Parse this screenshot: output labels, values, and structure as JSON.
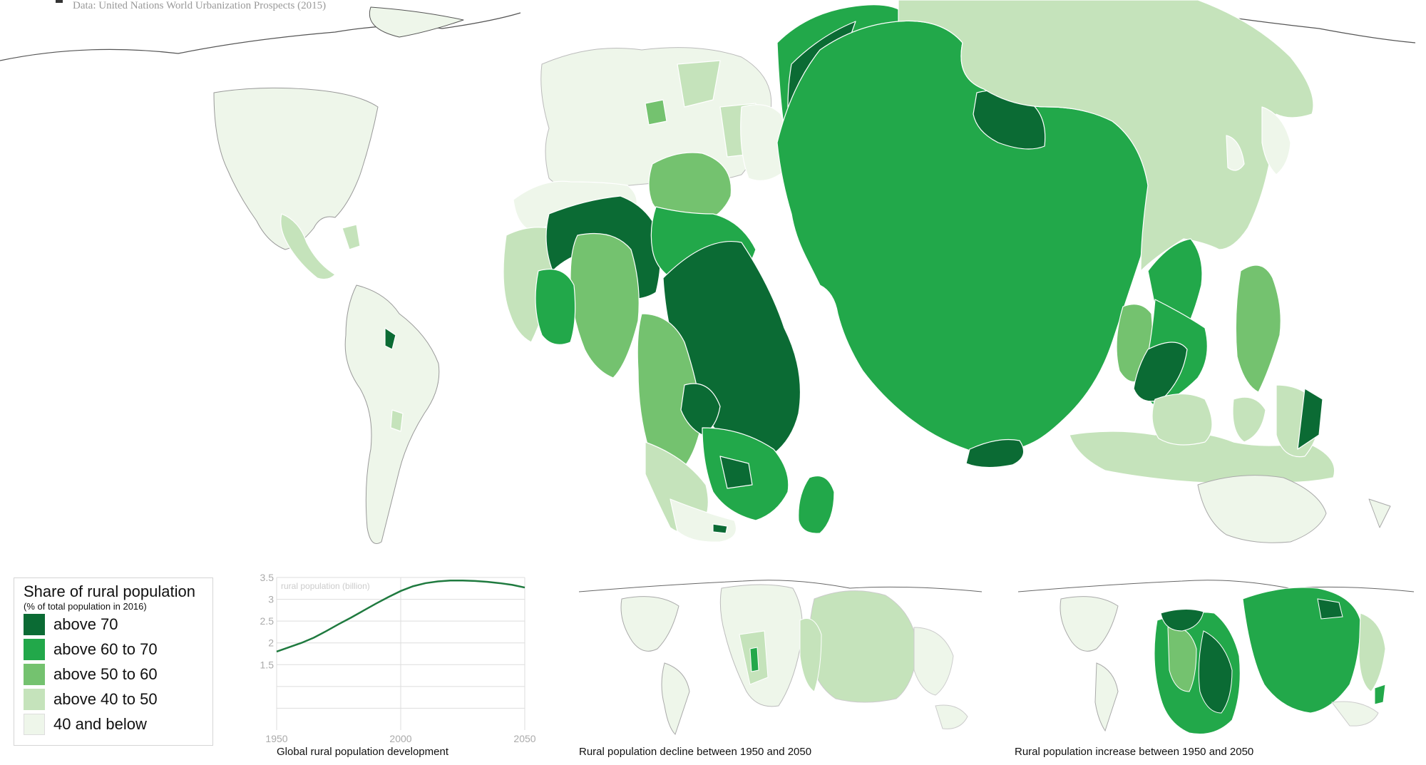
{
  "source": "Data: United Nations World Urbanization Prospects (2015)",
  "colors": {
    "above_70": "#0b6b34",
    "above_60_to_70": "#22a84a",
    "above_50_to_60": "#74c26f",
    "above_40_to_50": "#c5e3bb",
    "below_40": "#eef6ea"
  },
  "legend": {
    "title": "Share of rural population",
    "subtitle": "(% of total population in 2016)",
    "items": [
      {
        "label": "above 70",
        "color": "#0b6b34"
      },
      {
        "label": "above 60 to 70",
        "color": "#22a84a"
      },
      {
        "label": "above 50 to 60",
        "color": "#74c26f"
      },
      {
        "label": "above 40 to 50",
        "color": "#c5e3bb"
      },
      {
        "label": "40 and below",
        "color": "#eef6ea"
      }
    ]
  },
  "captions": {
    "chart": "Global rural population development",
    "decline": "Rural population decline between 1950 and 2050",
    "increase": "Rural population increase between 1950 and 2050"
  },
  "chart_data": {
    "type": "line",
    "title": "Global rural population development",
    "ylabel": "rural population (billion)",
    "xlim": [
      1950,
      2050
    ],
    "ylim": [
      0,
      3.5
    ],
    "yticks": [
      1.5,
      2,
      2.5,
      3,
      3.5
    ],
    "ytick_labels": [
      "1.5",
      "2",
      "2.5",
      "3",
      "3.5"
    ],
    "xticks": [
      1950,
      2000,
      2050
    ],
    "grid": true,
    "x": [
      1950,
      1955,
      1960,
      1965,
      1970,
      1975,
      1980,
      1985,
      1990,
      1995,
      2000,
      2005,
      2010,
      2015,
      2020,
      2025,
      2030,
      2035,
      2040,
      2045,
      2050
    ],
    "values": [
      1.8,
      1.9,
      2.0,
      2.12,
      2.27,
      2.43,
      2.58,
      2.74,
      2.9,
      3.05,
      3.19,
      3.3,
      3.37,
      3.41,
      3.43,
      3.43,
      3.42,
      3.4,
      3.37,
      3.33,
      3.27
    ],
    "line_color": "#1f7a3f"
  }
}
